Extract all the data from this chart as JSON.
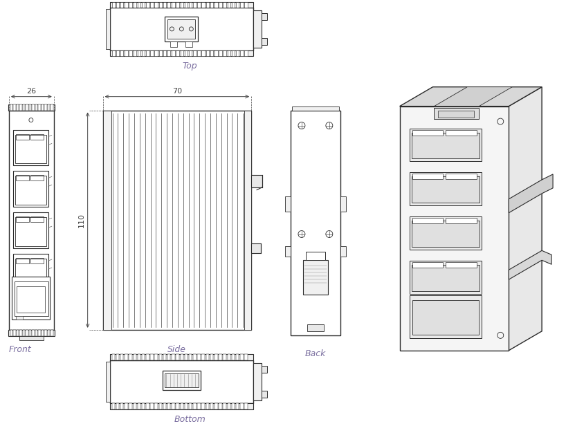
{
  "background_color": "#ffffff",
  "line_color": "#2a2a2a",
  "dim_color": "#444444",
  "label_color": "#7B6FA0",
  "fig_width": 8.18,
  "fig_height": 6.16,
  "labels": {
    "top": "Top",
    "front": "Front",
    "side": "Side",
    "back": "Back",
    "bottom": "Bottom"
  },
  "dims": {
    "width_label": "70",
    "depth_label": "26",
    "height_label": "110"
  }
}
